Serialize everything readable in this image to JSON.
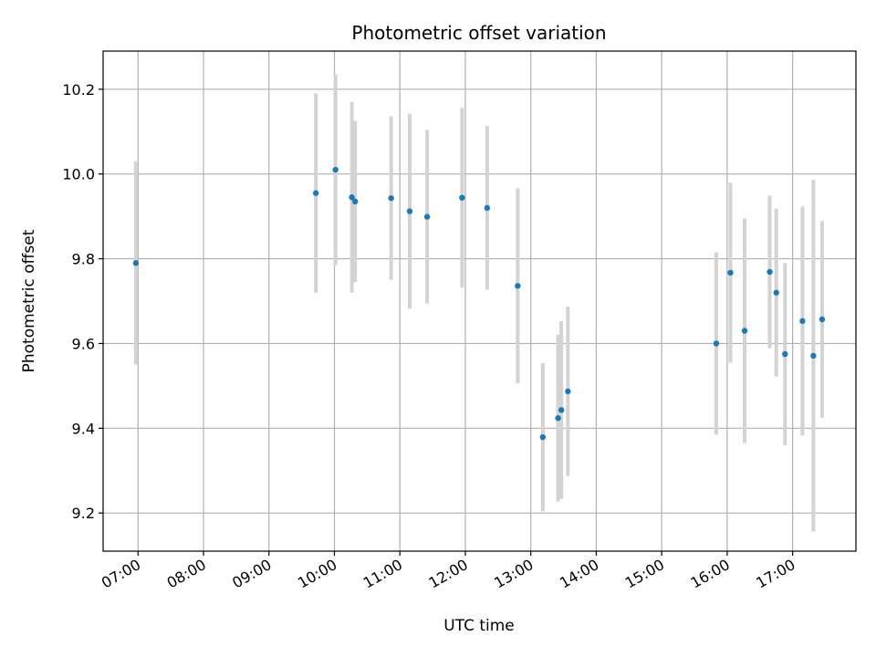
{
  "chart_data": {
    "type": "scatter",
    "title": "Photometric offset variation",
    "xlabel": "UTC time",
    "ylabel": "Photometric offset",
    "x_ticks": [
      "07:00",
      "08:00",
      "09:00",
      "10:00",
      "11:00",
      "12:00",
      "13:00",
      "14:00",
      "15:00",
      "16:00",
      "17:00"
    ],
    "y_ticks": [
      "9.2",
      "9.4",
      "9.6",
      "9.8",
      "10.0",
      "10.2"
    ],
    "xlim": [
      "06:28",
      "17:58"
    ],
    "ylim": [
      9.11,
      10.29
    ],
    "grid": true,
    "colors": {
      "point": "#1f77b4",
      "errorbar": "#d3d3d3",
      "grid": "#b0b0b0"
    },
    "points": [
      {
        "x": "06:58",
        "y": 9.79,
        "err": 0.24
      },
      {
        "x": "09:43",
        "y": 9.955,
        "err": 0.235
      },
      {
        "x": "10:01",
        "y": 10.01,
        "err": 0.225
      },
      {
        "x": "10:16",
        "y": 9.945,
        "err": 0.225
      },
      {
        "x": "10:19",
        "y": 9.935,
        "err": 0.19
      },
      {
        "x": "10:52",
        "y": 9.943,
        "err": 0.193
      },
      {
        "x": "11:09",
        "y": 9.912,
        "err": 0.23
      },
      {
        "x": "11:25",
        "y": 9.899,
        "err": 0.205
      },
      {
        "x": "11:57",
        "y": 9.944,
        "err": 0.212
      },
      {
        "x": "12:20",
        "y": 9.92,
        "err": 0.193
      },
      {
        "x": "12:48",
        "y": 9.736,
        "err": 0.23
      },
      {
        "x": "13:11",
        "y": 9.379,
        "err": 0.175
      },
      {
        "x": "13:25",
        "y": 9.424,
        "err": 0.197
      },
      {
        "x": "13:28",
        "y": 9.443,
        "err": 0.21
      },
      {
        "x": "13:34",
        "y": 9.487,
        "err": 0.2
      },
      {
        "x": "15:50",
        "y": 9.6,
        "err": 0.215
      },
      {
        "x": "16:03",
        "y": 9.767,
        "err": 0.212
      },
      {
        "x": "16:16",
        "y": 9.63,
        "err": 0.265
      },
      {
        "x": "16:39",
        "y": 9.769,
        "err": 0.18
      },
      {
        "x": "16:45",
        "y": 9.72,
        "err": 0.198
      },
      {
        "x": "16:53",
        "y": 9.575,
        "err": 0.215
      },
      {
        "x": "17:09",
        "y": 9.653,
        "err": 0.27
      },
      {
        "x": "17:19",
        "y": 9.571,
        "err": 0.415
      },
      {
        "x": "17:27",
        "y": 9.657,
        "err": 0.232
      }
    ]
  }
}
